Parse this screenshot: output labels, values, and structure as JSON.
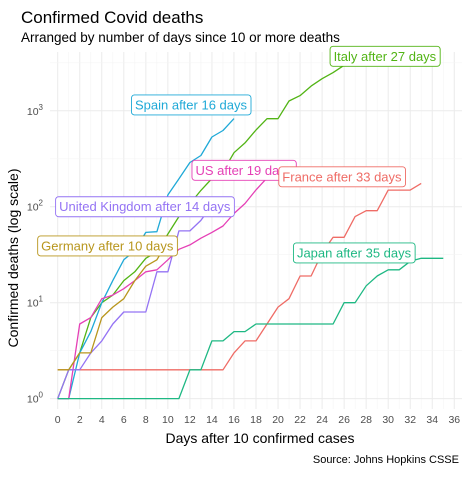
{
  "chart_data": {
    "type": "line",
    "title": "Confirmed Covid deaths",
    "subtitle": "Arranged by number of days since 10 or more deaths",
    "xlabel": "Days after 10 confirmed cases",
    "ylabel": "Confirmed deaths (log scale)",
    "caption": "Source: Johns Hopkins CSSE",
    "y_scale": "log10",
    "xlim": [
      -0.7,
      36.7
    ],
    "ylim": [
      0.78,
      4100
    ],
    "x_ticks": [
      0,
      2,
      4,
      6,
      8,
      10,
      12,
      14,
      16,
      18,
      20,
      22,
      24,
      26,
      28,
      30,
      32,
      34,
      36
    ],
    "x_tick_labels": [
      "0",
      "2",
      "4",
      "6",
      "8",
      "10",
      "12",
      "14",
      "16",
      "18",
      "20",
      "22",
      "24",
      "26",
      "28",
      "30",
      "32",
      "34",
      "36"
    ],
    "y_ticks": [
      {
        "value": 1,
        "base": "10",
        "exp": "0"
      },
      {
        "value": 10,
        "base": "10",
        "exp": "1"
      },
      {
        "value": 100,
        "base": "10",
        "exp": "2"
      },
      {
        "value": 1000,
        "base": "10",
        "exp": "3"
      }
    ],
    "grid": true,
    "legend": "none",
    "series": [
      {
        "name": "Italy",
        "color": "#52B415",
        "x": [
          0,
          1,
          2,
          3,
          4,
          5,
          6,
          7,
          8,
          9,
          10,
          11,
          12,
          13,
          14,
          15,
          16,
          17,
          18,
          19,
          20,
          21,
          22,
          23,
          24,
          25,
          26,
          27
        ],
        "y": [
          1,
          2,
          3,
          7,
          10,
          12,
          17,
          21,
          29,
          34,
          52,
          79,
          107,
          148,
          197,
          233,
          366,
          463,
          631,
          827,
          827,
          1266,
          1441,
          1809,
          2158,
          2503,
          2978,
          3405
        ],
        "label": "Italy after 27 days",
        "label_at": [
          29.7,
          3700
        ]
      },
      {
        "name": "Spain",
        "color": "#1FA9D7",
        "x": [
          0,
          1,
          2,
          3,
          4,
          5,
          6,
          7,
          8,
          9,
          10,
          11,
          12,
          13,
          14,
          15,
          16
        ],
        "y": [
          1,
          1,
          3,
          5,
          10,
          17,
          28,
          35,
          54,
          55,
          133,
          195,
          289,
          342,
          533,
          623,
          830
        ],
        "label": "Spain after 16 days",
        "label_at": [
          12.1,
          1150
        ]
      },
      {
        "name": "US",
        "color": "#E540B6",
        "x": [
          0,
          1,
          2,
          3,
          4,
          5,
          6,
          7,
          8,
          9,
          10,
          11,
          12,
          13,
          14,
          15,
          16,
          17,
          18,
          19
        ],
        "y": [
          1,
          1,
          6,
          7,
          11,
          12,
          14,
          17,
          21,
          22,
          28,
          36,
          40,
          47,
          54,
          63,
          85,
          108,
          150,
          200
        ],
        "label": "US after 19 days",
        "label_at": [
          16.9,
          240
        ]
      },
      {
        "name": "France",
        "color": "#EF6C66",
        "x": [
          0,
          1,
          2,
          3,
          4,
          5,
          6,
          7,
          8,
          9,
          10,
          11,
          12,
          13,
          14,
          15,
          16,
          17,
          18,
          19,
          20,
          21,
          22,
          23,
          24,
          25,
          26,
          27,
          28,
          29,
          30,
          31,
          32,
          33
        ],
        "y": [
          2,
          2,
          2,
          2,
          2,
          2,
          2,
          2,
          2,
          2,
          2,
          2,
          2,
          2,
          2,
          2,
          3,
          4,
          4,
          6,
          9,
          11,
          19,
          19,
          33,
          48,
          48,
          79,
          91,
          91,
          149,
          149,
          149,
          175
        ],
        "label": "France after 33 days",
        "label_at": [
          25.8,
          205
        ]
      },
      {
        "name": "United Kingdom",
        "color": "#9473F4",
        "x": [
          0,
          1,
          2,
          3,
          4,
          5,
          6,
          7,
          8,
          9,
          10,
          11,
          12,
          13,
          14
        ],
        "y": [
          1,
          2,
          2,
          3,
          4,
          6,
          8,
          8,
          8,
          21,
          21,
          56,
          56,
          72,
          104
        ],
        "label": "United Kingdom after 14 days",
        "label_at": [
          7.9,
          100
        ]
      },
      {
        "name": "Germany",
        "color": "#B8961D",
        "x": [
          0,
          1,
          2,
          3,
          4,
          5,
          6,
          7,
          8,
          9,
          10
        ],
        "y": [
          2,
          2,
          3,
          3,
          7,
          9,
          11,
          17,
          24,
          28,
          44
        ],
        "label": "Germany after 10 days",
        "label_at": [
          4.5,
          39
        ]
      },
      {
        "name": "Japan",
        "color": "#1EB883",
        "x": [
          0,
          1,
          2,
          3,
          4,
          5,
          6,
          7,
          8,
          9,
          10,
          11,
          12,
          13,
          14,
          15,
          16,
          17,
          18,
          19,
          20,
          21,
          22,
          23,
          24,
          25,
          26,
          27,
          28,
          29,
          30,
          31,
          32,
          33,
          34,
          35
        ],
        "y": [
          1,
          1,
          1,
          1,
          1,
          1,
          1,
          1,
          1,
          1,
          1,
          1,
          2,
          2,
          4,
          4,
          5,
          5,
          6,
          6,
          6,
          6,
          6,
          6,
          6,
          6,
          10,
          10,
          15,
          19,
          22,
          22,
          27,
          29,
          29,
          29
        ],
        "label": "Japan after 35 days",
        "label_at": [
          26.9,
          33
        ]
      }
    ]
  }
}
